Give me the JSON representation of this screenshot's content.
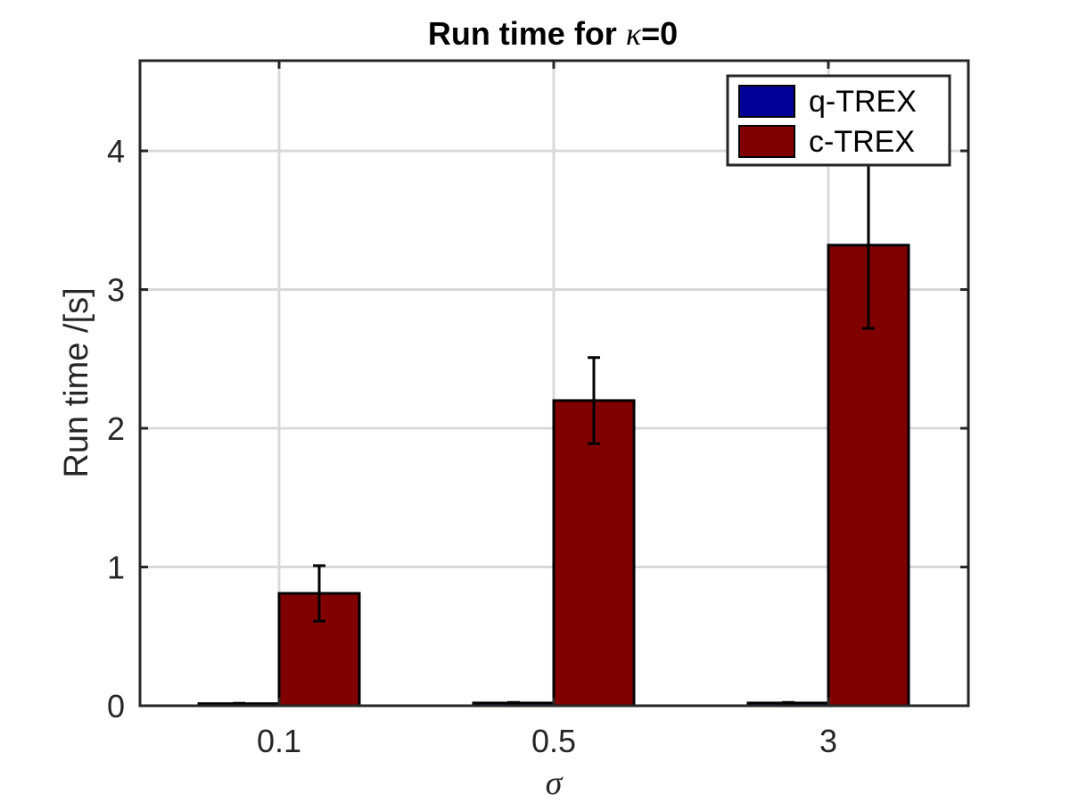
{
  "chart_data": {
    "type": "bar",
    "title_prefix": "Run time for ",
    "title_symbol": "κ",
    "title_suffix": "=0",
    "xlabel": "σ",
    "ylabel": "Run time  /[s]",
    "categories": [
      "0.1",
      "0.5",
      "3"
    ],
    "ylim": [
      0,
      4.65
    ],
    "yticks": [
      0,
      1,
      2,
      3,
      4
    ],
    "grid": true,
    "legend_position": "top-right",
    "series": [
      {
        "name": "q-TREX",
        "color": "#000099",
        "values": [
          0.015,
          0.02,
          0.02
        ],
        "errors": [
          0.003,
          0.004,
          0.004
        ]
      },
      {
        "name": "c-TREX",
        "color": "#800000",
        "values": [
          0.81,
          2.2,
          3.32
        ],
        "errors": [
          0.2,
          0.31,
          0.6
        ]
      }
    ]
  }
}
